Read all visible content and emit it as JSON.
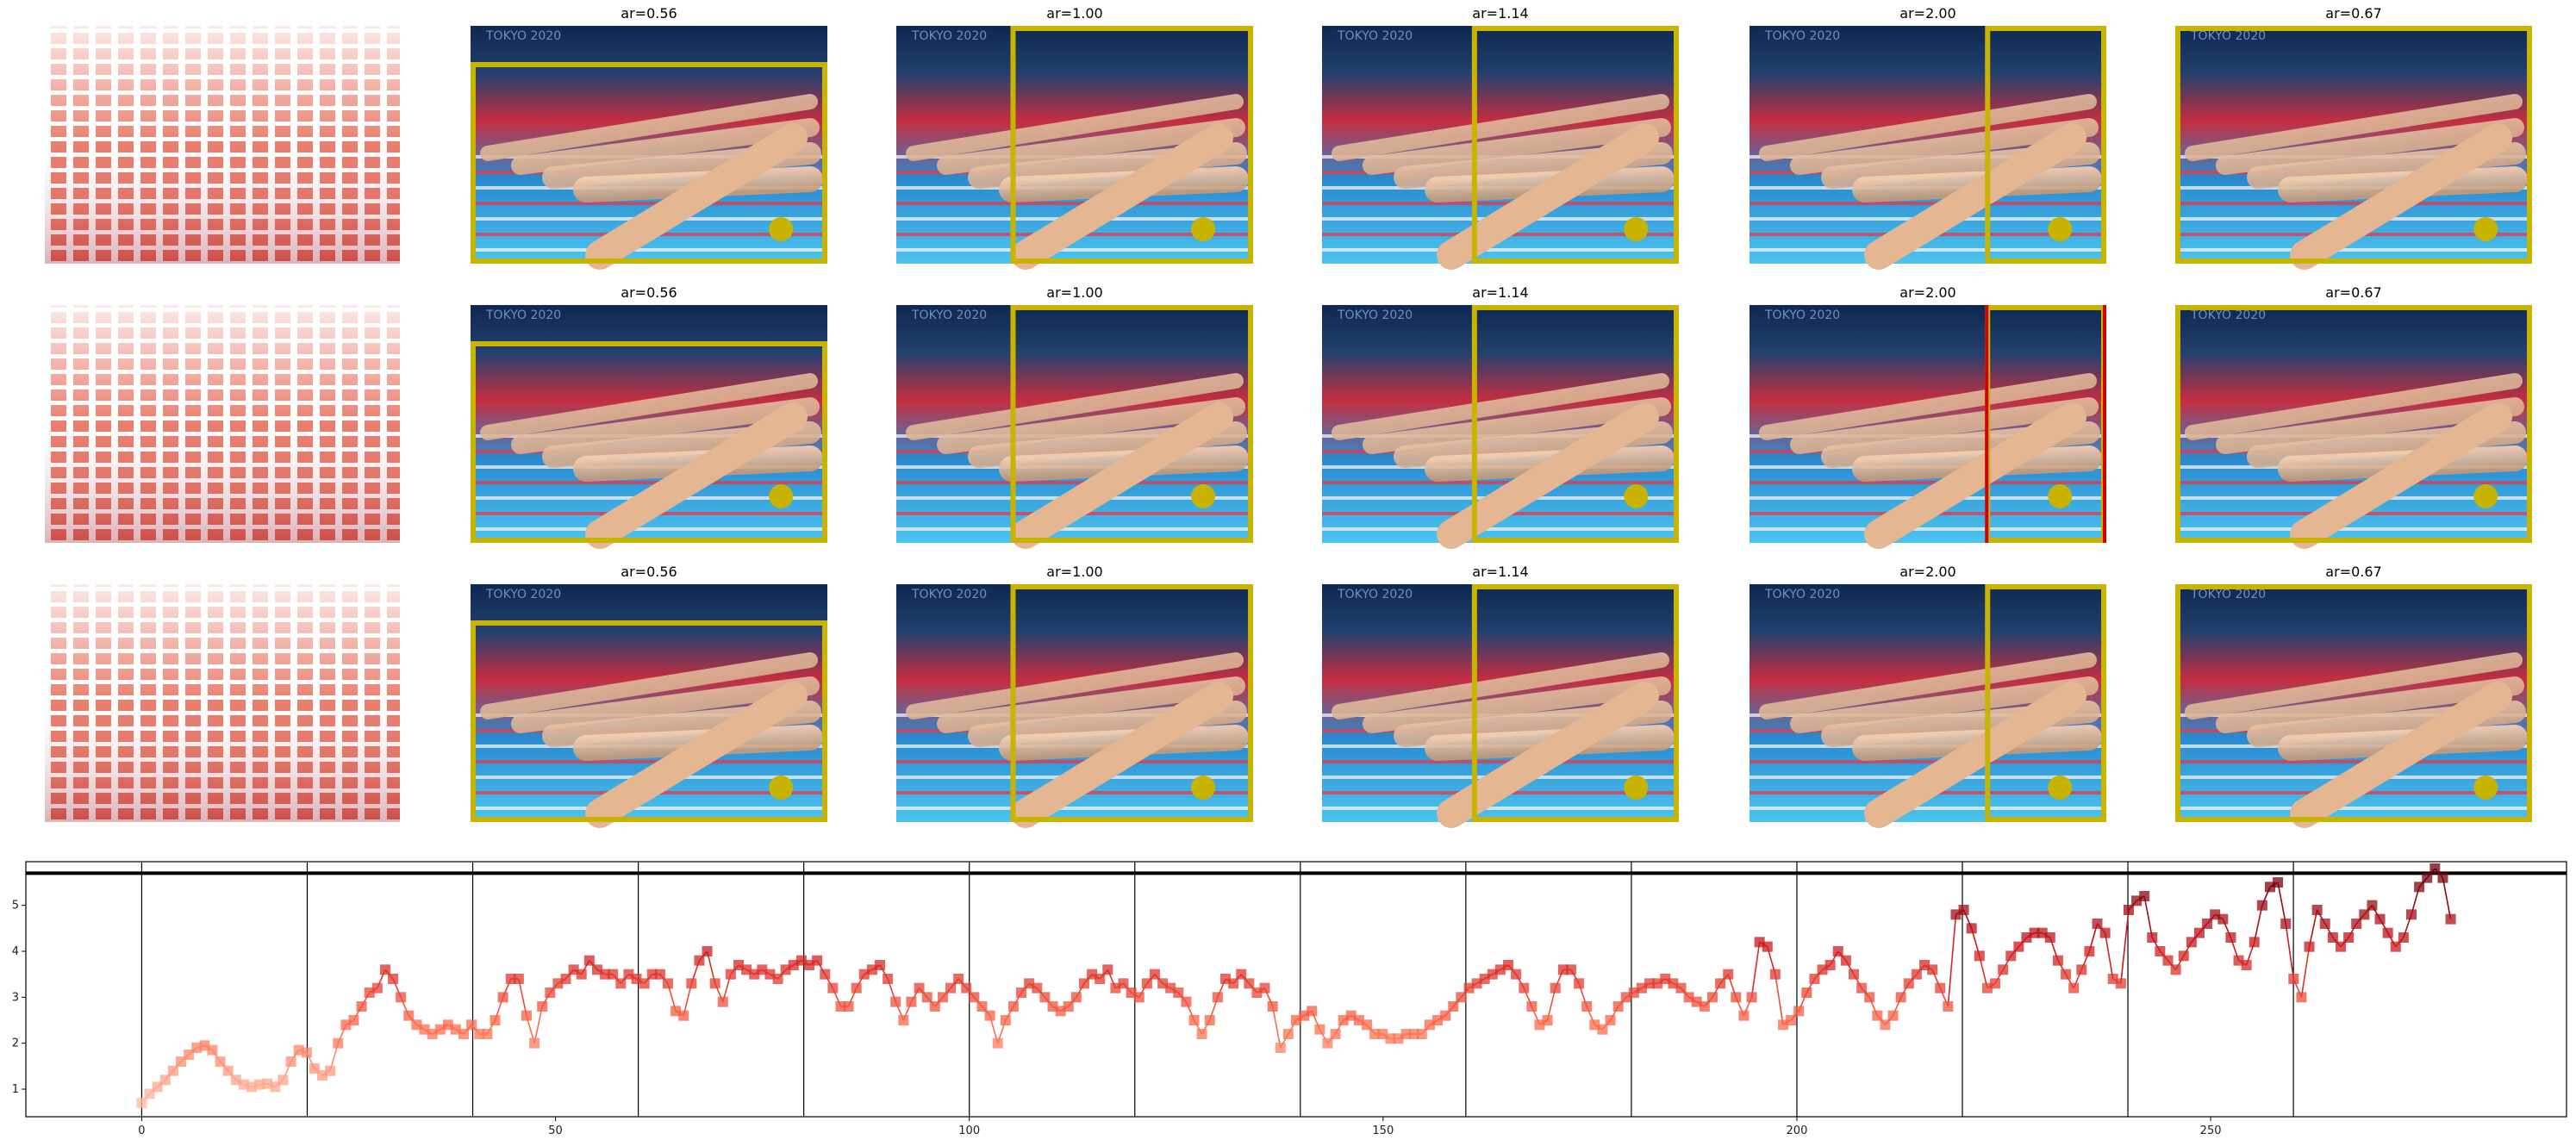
{
  "panels": {
    "grid_rows": 3,
    "thumbnail_titles": [
      "ar=0.56",
      "ar=1.00",
      "ar=1.14",
      "ar=2.00",
      "ar=0.67"
    ],
    "photo_caption": "TOKYO 2020",
    "box_color": "#c8b400",
    "highlight_color": "#d40000",
    "highlight": {
      "row": 2,
      "column": 4
    }
  },
  "chart_data": {
    "type": "line",
    "marker": "square",
    "colormap": "Reds",
    "xlim": [
      -14,
      293
    ],
    "ylim": [
      0.4,
      5.95
    ],
    "xticks": [
      0,
      50,
      100,
      150,
      200,
      250
    ],
    "yticks": [
      1,
      2,
      3,
      4,
      5
    ],
    "vlines": [
      0,
      20,
      40,
      60,
      80,
      100,
      120,
      140,
      160,
      180,
      200,
      220,
      240,
      260
    ],
    "hline": 5.7,
    "title": "",
    "xlabel": "",
    "ylabel": "",
    "x_range": [
      0,
      279
    ],
    "y": [
      0.7,
      0.9,
      1.05,
      1.2,
      1.4,
      1.6,
      1.75,
      1.9,
      1.95,
      1.85,
      1.6,
      1.4,
      1.2,
      1.1,
      1.05,
      1.1,
      1.12,
      1.05,
      1.2,
      1.6,
      1.85,
      1.8,
      1.45,
      1.3,
      1.4,
      2.0,
      2.4,
      2.5,
      2.8,
      3.1,
      3.2,
      3.6,
      3.4,
      3.0,
      2.6,
      2.4,
      2.3,
      2.2,
      2.3,
      2.4,
      2.3,
      2.2,
      2.4,
      2.2,
      2.2,
      2.5,
      3.0,
      3.4,
      3.4,
      2.6,
      2.0,
      2.8,
      3.1,
      3.3,
      3.4,
      3.6,
      3.5,
      3.8,
      3.6,
      3.5,
      3.5,
      3.3,
      3.5,
      3.4,
      3.3,
      3.5,
      3.5,
      3.3,
      2.7,
      2.6,
      3.3,
      3.8,
      4.0,
      3.3,
      2.9,
      3.5,
      3.7,
      3.6,
      3.5,
      3.6,
      3.5,
      3.4,
      3.6,
      3.7,
      3.8,
      3.7,
      3.8,
      3.5,
      3.2,
      2.8,
      2.8,
      3.2,
      3.5,
      3.6,
      3.7,
      3.4,
      2.9,
      2.5,
      2.9,
      3.2,
      3.0,
      2.8,
      3.0,
      3.2,
      3.4,
      3.2,
      3.0,
      2.8,
      2.6,
      2.0,
      2.5,
      2.8,
      3.1,
      3.3,
      3.2,
      3.0,
      2.8,
      2.7,
      2.8,
      3.0,
      3.3,
      3.5,
      3.4,
      3.6,
      3.2,
      3.3,
      3.1,
      3.0,
      3.3,
      3.5,
      3.3,
      3.2,
      3.1,
      2.9,
      2.5,
      2.2,
      2.5,
      3.0,
      3.4,
      3.3,
      3.5,
      3.3,
      3.1,
      3.2,
      2.8,
      1.9,
      2.2,
      2.5,
      2.6,
      2.7,
      2.3,
      2.0,
      2.2,
      2.5,
      2.6,
      2.5,
      2.4,
      2.2,
      2.2,
      2.1,
      2.1,
      2.2,
      2.2,
      2.2,
      2.4,
      2.5,
      2.6,
      2.8,
      3.0,
      3.2,
      3.3,
      3.4,
      3.5,
      3.6,
      3.7,
      3.5,
      3.2,
      2.8,
      2.4,
      2.5,
      3.2,
      3.6,
      3.6,
      3.3,
      2.8,
      2.4,
      2.3,
      2.5,
      2.8,
      3.0,
      3.1,
      3.2,
      3.3,
      3.3,
      3.4,
      3.3,
      3.2,
      3.0,
      2.9,
      2.8,
      3.0,
      3.3,
      3.5,
      3.0,
      2.6,
      3.0,
      4.2,
      4.1,
      3.5,
      2.4,
      2.5,
      2.7,
      3.1,
      3.4,
      3.6,
      3.7,
      4.0,
      3.8,
      3.5,
      3.2,
      3.0,
      2.6,
      2.4,
      2.6,
      3.0,
      3.3,
      3.5,
      3.7,
      3.6,
      3.2,
      2.8,
      4.8,
      4.9,
      4.5,
      3.9,
      3.2,
      3.3,
      3.6,
      3.9,
      4.1,
      4.3,
      4.4,
      4.4,
      4.3,
      3.8,
      3.5,
      3.2,
      3.6,
      4.0,
      4.6,
      4.4,
      3.4,
      3.3,
      4.9,
      5.1,
      5.2,
      4.3,
      4.0,
      3.8,
      3.6,
      3.9,
      4.2,
      4.4,
      4.6,
      4.8,
      4.7,
      4.3,
      3.8,
      3.7,
      4.2,
      5.0,
      5.4,
      5.5,
      4.6,
      3.4,
      3.0,
      4.1,
      4.9,
      4.6,
      4.3,
      4.1,
      4.3,
      4.6,
      4.8,
      5.0,
      4.7,
      4.4,
      4.1,
      4.3,
      4.8,
      5.4,
      5.6,
      5.8,
      5.6,
      4.7
    ]
  }
}
